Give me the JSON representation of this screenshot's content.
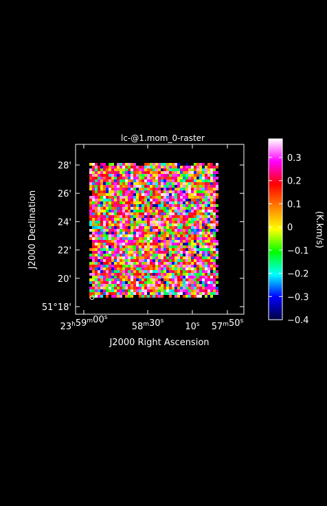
{
  "chart_data": {
    "type": "heatmap",
    "title": "lc-@1.mom_0-raster",
    "xlabel": "J2000 Right Ascension",
    "ylabel": "J2000 Declination",
    "x_ticks": [
      {
        "h": "23",
        "hu": "h",
        "m": "59",
        "mu": "m",
        "s": "00",
        "su": "s"
      },
      {
        "m": "58",
        "mu": "m",
        "s": "30",
        "su": "s"
      },
      {
        "s": "10",
        "su": "s"
      },
      {
        "m": "57",
        "mu": "m",
        "s": "50",
        "su": "s"
      }
    ],
    "y_ticks": [
      {
        "deg": "",
        "min": "28'"
      },
      {
        "deg": "",
        "min": "26'"
      },
      {
        "deg": "",
        "min": "24'"
      },
      {
        "deg": "",
        "min": "22'"
      },
      {
        "deg": "",
        "min": "20'"
      },
      {
        "deg": "51°",
        "min": "18'"
      }
    ],
    "y_tick_values_arcmin": [
      28,
      26,
      24,
      22,
      20,
      18
    ],
    "colorbar": {
      "label": "(K.km/s)",
      "range": [
        -0.4,
        0.38
      ],
      "tick_values": [
        0.3,
        0.2,
        0.1,
        0,
        -0.1,
        -0.2,
        -0.3,
        -0.4
      ],
      "tick_labels": [
        "0.3",
        "0.2",
        "0.1",
        "0",
        "−0.1",
        "−0.2",
        "−0.3",
        "−0.4"
      ],
      "colormap": [
        "#000040",
        "#0000ff",
        "#00ffff",
        "#00ff00",
        "#ffff00",
        "#ff8000",
        "#ff0000",
        "#ff00ff",
        "#ffffff"
      ]
    },
    "pixel_value_distribution": "random noise, roughly -0.4 to 0.38 K.km/s",
    "beam_marker": "ellipse"
  }
}
